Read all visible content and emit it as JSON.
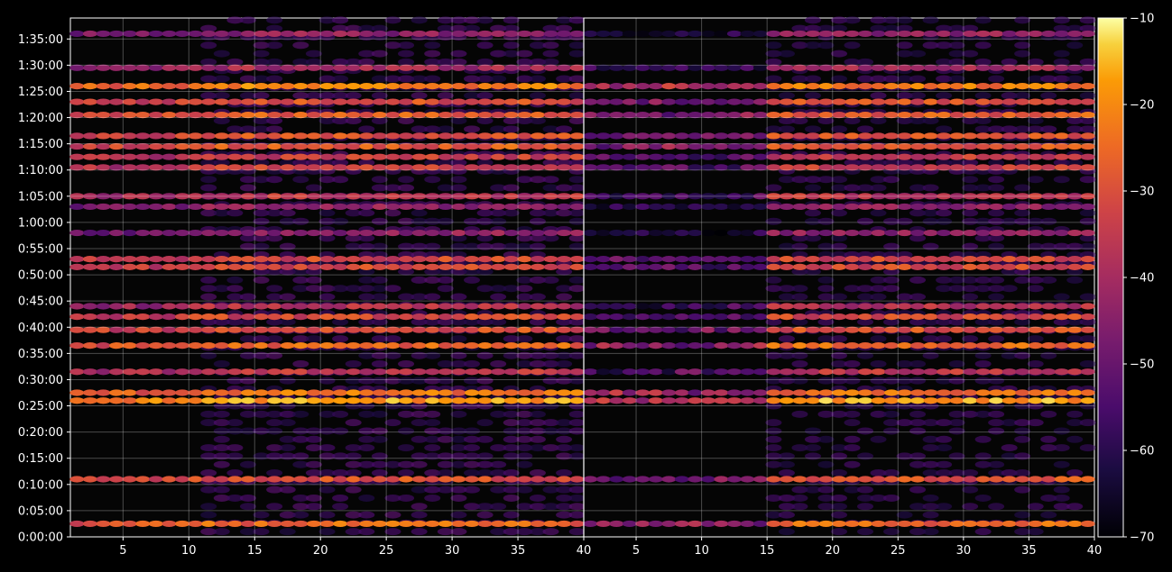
{
  "chart_data": {
    "type": "heatmap",
    "title": "",
    "xlabel": "",
    "ylabel": "",
    "background": "#000000",
    "colormap": "inferno",
    "grid": true,
    "panels": [
      {
        "id": "left",
        "xlim": [
          1,
          40
        ],
        "x_ticks": [
          5,
          10,
          15,
          20,
          25,
          30,
          35,
          40
        ],
        "y_ticks": [
          "0:00:00",
          "0:05:00",
          "0:10:00",
          "0:15:00",
          "0:20:00",
          "0:25:00",
          "0:30:00",
          "0:35:00",
          "0:40:00",
          "0:45:00",
          "0:50:00",
          "0:55:00",
          "1:00:00",
          "1:05:00",
          "1:10:00",
          "1:15:00",
          "1:20:00",
          "1:25:00",
          "1:30:00",
          "1:35:00"
        ],
        "ylim_minutes": [
          0,
          99
        ]
      },
      {
        "id": "right",
        "xlim": [
          1,
          40
        ],
        "x_ticks": [
          5,
          10,
          15,
          20,
          25,
          30,
          35,
          40
        ],
        "ylim_minutes": [
          0,
          99
        ]
      }
    ],
    "bright_rows_minutes": [
      {
        "t": 2.5,
        "level": -26
      },
      {
        "t": 11,
        "level": -30
      },
      {
        "t": 26,
        "level": -18
      },
      {
        "t": 27.5,
        "level": -24
      },
      {
        "t": 31.5,
        "level": -36
      },
      {
        "t": 36.5,
        "level": -26
      },
      {
        "t": 39.5,
        "level": -30
      },
      {
        "t": 42,
        "level": -32
      },
      {
        "t": 44,
        "level": -38
      },
      {
        "t": 51.5,
        "level": -32
      },
      {
        "t": 53,
        "level": -32
      },
      {
        "t": 58,
        "level": -44
      },
      {
        "t": 63,
        "level": -44
      },
      {
        "t": 65,
        "level": -36
      },
      {
        "t": 70.5,
        "level": -34
      },
      {
        "t": 72.5,
        "level": -34
      },
      {
        "t": 74.5,
        "level": -28
      },
      {
        "t": 76.5,
        "level": -30
      },
      {
        "t": 80.5,
        "level": -28
      },
      {
        "t": 83,
        "level": -30
      },
      {
        "t": 86,
        "level": -22
      },
      {
        "t": 89.5,
        "level": -40
      },
      {
        "t": 96,
        "level": -44
      }
    ],
    "colorbar": {
      "ticks": [
        -10,
        -20,
        -30,
        -40,
        -50,
        -60,
        -70
      ],
      "range": [
        -70,
        -10
      ]
    }
  }
}
